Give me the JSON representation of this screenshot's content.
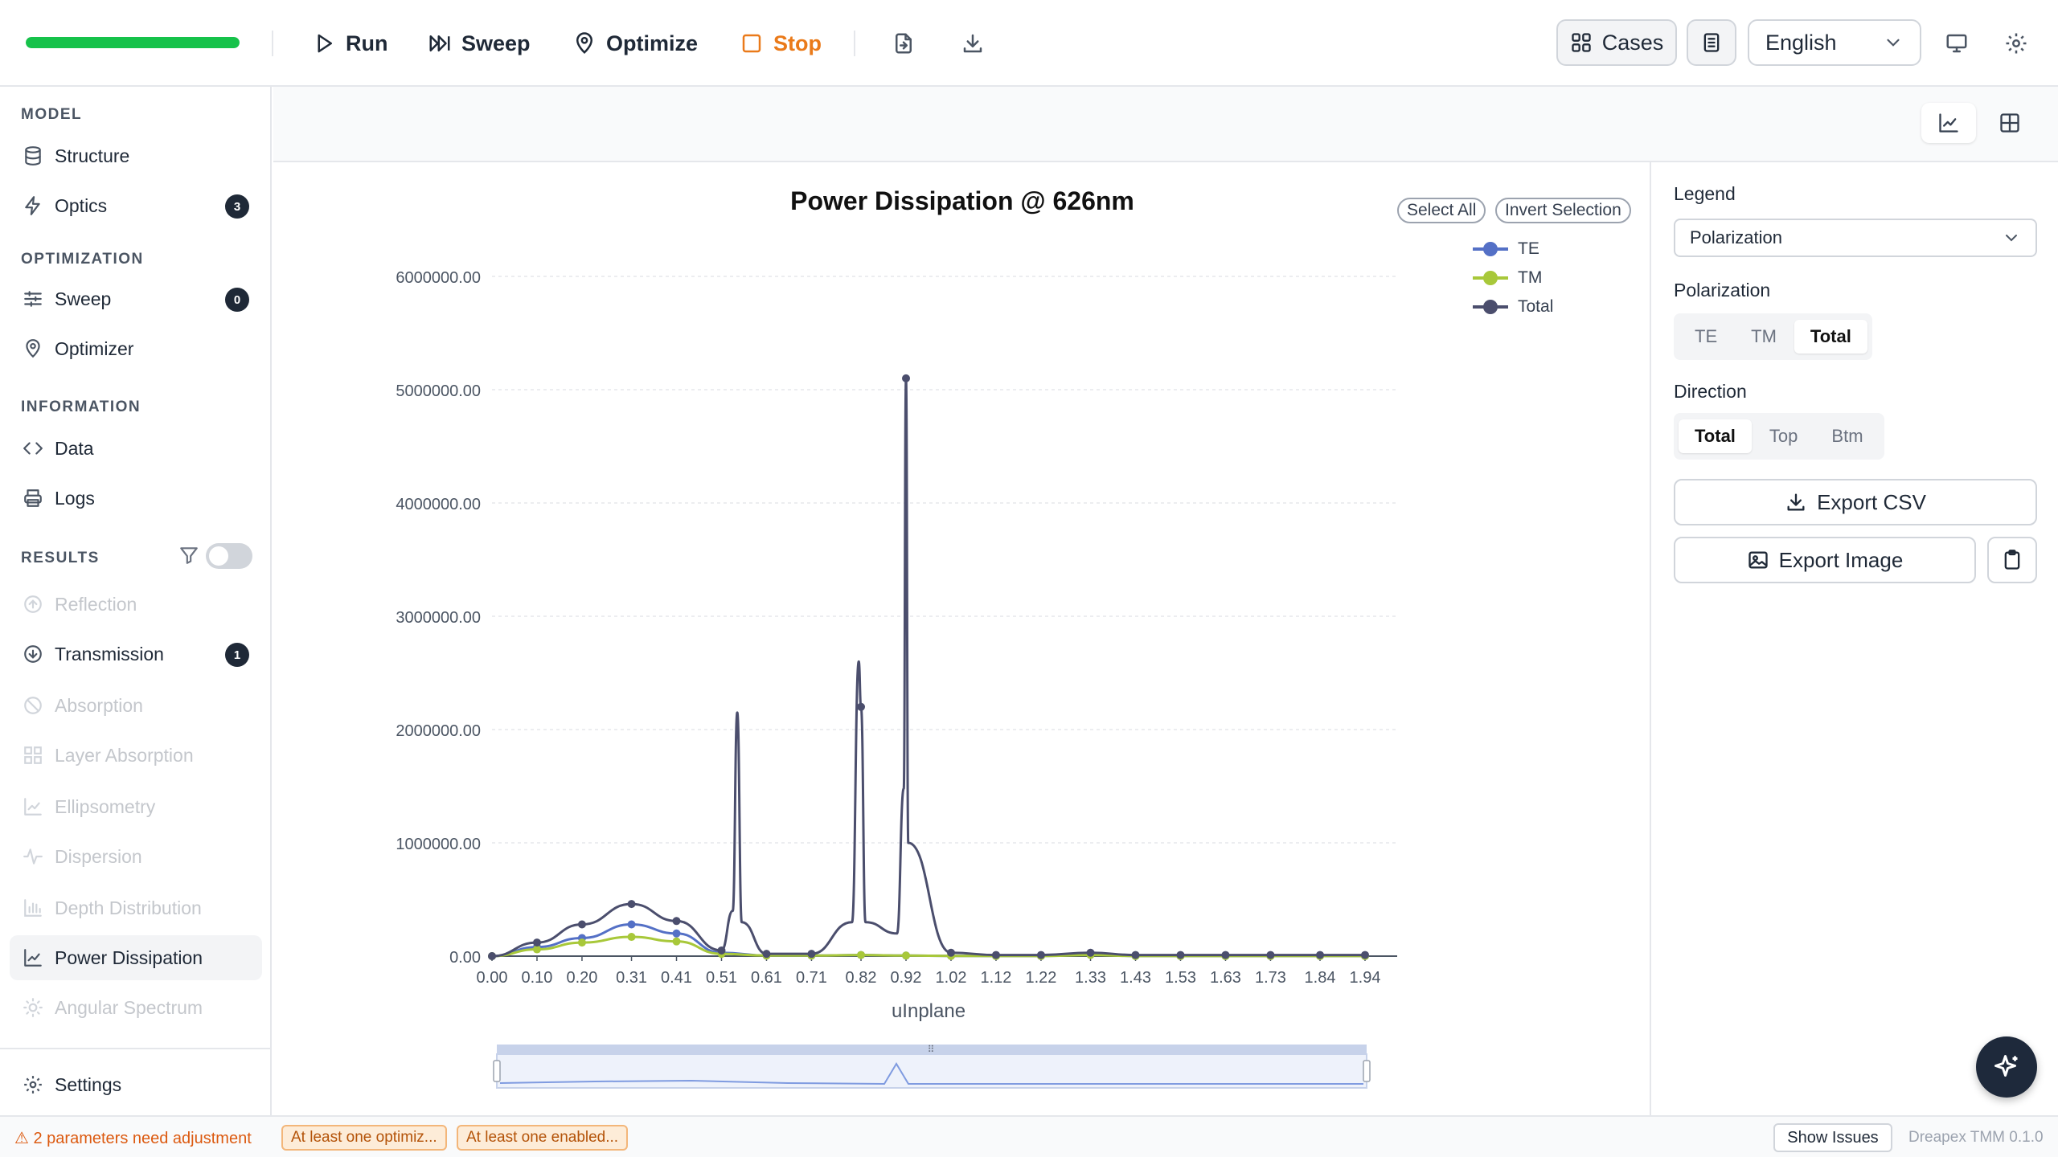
{
  "toolbar": {
    "progress": 1.0,
    "run_label": "Run",
    "sweep_label": "Sweep",
    "optimize_label": "Optimize",
    "stop_label": "Stop",
    "cases_label": "Cases",
    "language": "English"
  },
  "sidebar": {
    "sections": {
      "model": "MODEL",
      "optimization": "OPTIMIZATION",
      "information": "INFORMATION",
      "results": "RESULTS"
    },
    "items": {
      "structure": "Structure",
      "optics": "Optics",
      "optics_badge": "3",
      "sweep": "Sweep",
      "sweep_badge": "0",
      "optimizer": "Optimizer",
      "data": "Data",
      "logs": "Logs",
      "reflection": "Reflection",
      "transmission": "Transmission",
      "transmission_badge": "1",
      "absorption": "Absorption",
      "layer_absorption": "Layer Absorption",
      "ellipsometry": "Ellipsometry",
      "dispersion": "Dispersion",
      "depth_distribution": "Depth Distribution",
      "power_dissipation": "Power Dissipation",
      "angular_spectrum": "Angular Spectrum",
      "settings": "Settings"
    }
  },
  "chart_controls": {
    "select_all": "Select All",
    "invert_selection": "Invert Selection"
  },
  "chart_data": {
    "type": "line",
    "title": "Power Dissipation @ 626nm",
    "xlabel": "uInplane",
    "ylabel": "",
    "xlim": [
      0,
      1.94
    ],
    "ylim": [
      0,
      6000000
    ],
    "x_tick_labels": [
      "0.00",
      "0.10",
      "0.20",
      "0.31",
      "0.41",
      "0.51",
      "0.61",
      "0.71",
      "0.82",
      "0.92",
      "1.02",
      "1.12",
      "1.22",
      "1.33",
      "1.43",
      "1.53",
      "1.63",
      "1.73",
      "1.84",
      "1.94"
    ],
    "y_tick_labels": [
      "0.00",
      "1000000.00",
      "2000000.00",
      "3000000.00",
      "4000000.00",
      "5000000.00",
      "6000000.00"
    ],
    "y_ticks": [
      0,
      1000000,
      2000000,
      3000000,
      4000000,
      5000000,
      6000000
    ],
    "grid": true,
    "legend_position": "top-right",
    "series": [
      {
        "name": "TE",
        "color": "#5470c6",
        "points": [
          [
            0.0,
            0
          ],
          [
            0.1,
            80000
          ],
          [
            0.2,
            160000
          ],
          [
            0.31,
            280000
          ],
          [
            0.41,
            200000
          ],
          [
            0.51,
            30000
          ],
          [
            0.61,
            5000
          ],
          [
            0.71,
            5000
          ],
          [
            0.82,
            10000
          ],
          [
            0.92,
            5000
          ],
          [
            1.02,
            2000
          ],
          [
            1.12,
            1000
          ],
          [
            1.22,
            1000
          ],
          [
            1.33,
            20000
          ],
          [
            1.43,
            1000
          ],
          [
            1.53,
            1000
          ],
          [
            1.63,
            1000
          ],
          [
            1.73,
            1000
          ],
          [
            1.84,
            1000
          ],
          [
            1.94,
            1000
          ]
        ]
      },
      {
        "name": "TM",
        "color": "#a8c83a",
        "points": [
          [
            0.0,
            0
          ],
          [
            0.1,
            60000
          ],
          [
            0.2,
            120000
          ],
          [
            0.31,
            170000
          ],
          [
            0.41,
            130000
          ],
          [
            0.51,
            20000
          ],
          [
            0.61,
            5000
          ],
          [
            0.71,
            5000
          ],
          [
            0.82,
            10000
          ],
          [
            0.92,
            5000
          ],
          [
            1.02,
            2000
          ],
          [
            1.12,
            1000
          ],
          [
            1.22,
            1000
          ],
          [
            1.33,
            10000
          ],
          [
            1.43,
            1000
          ],
          [
            1.53,
            1000
          ],
          [
            1.63,
            1000
          ],
          [
            1.73,
            1000
          ],
          [
            1.84,
            1000
          ],
          [
            1.94,
            1000
          ]
        ]
      },
      {
        "name": "Total",
        "color": "#4b4e6d",
        "points": [
          [
            0.0,
            0
          ],
          [
            0.1,
            120000
          ],
          [
            0.2,
            280000
          ],
          [
            0.31,
            460000
          ],
          [
            0.41,
            310000
          ],
          [
            0.51,
            50000
          ],
          [
            0.535,
            400000
          ],
          [
            0.545,
            2150000
          ],
          [
            0.555,
            300000
          ],
          [
            0.61,
            20000
          ],
          [
            0.71,
            20000
          ],
          [
            0.8,
            300000
          ],
          [
            0.815,
            2600000
          ],
          [
            0.82,
            2200000
          ],
          [
            0.83,
            300000
          ],
          [
            0.9,
            200000
          ],
          [
            0.915,
            1480000
          ],
          [
            0.92,
            5100000
          ],
          [
            0.925,
            1000000
          ],
          [
            1.02,
            30000
          ],
          [
            1.12,
            10000
          ],
          [
            1.22,
            10000
          ],
          [
            1.33,
            30000
          ],
          [
            1.43,
            10000
          ],
          [
            1.53,
            10000
          ],
          [
            1.63,
            10000
          ],
          [
            1.73,
            10000
          ],
          [
            1.84,
            10000
          ],
          [
            1.94,
            10000
          ]
        ]
      }
    ]
  },
  "right_panel": {
    "legend_label": "Legend",
    "legend_value": "Polarization",
    "polarization_label": "Polarization",
    "polarization_options": [
      "TE",
      "TM",
      "Total"
    ],
    "polarization_selected": "Total",
    "direction_label": "Direction",
    "direction_options": [
      "Total",
      "Top",
      "Btm"
    ],
    "direction_selected": "Total",
    "export_csv": "Export CSV",
    "export_image": "Export Image"
  },
  "statusbar": {
    "warning": "⚠ 2 parameters need adjustment",
    "chip1": "At least one optimiz...",
    "chip2": "At least one enabled...",
    "show_issues": "Show Issues",
    "version": "Dreapex TMM 0.1.0"
  }
}
